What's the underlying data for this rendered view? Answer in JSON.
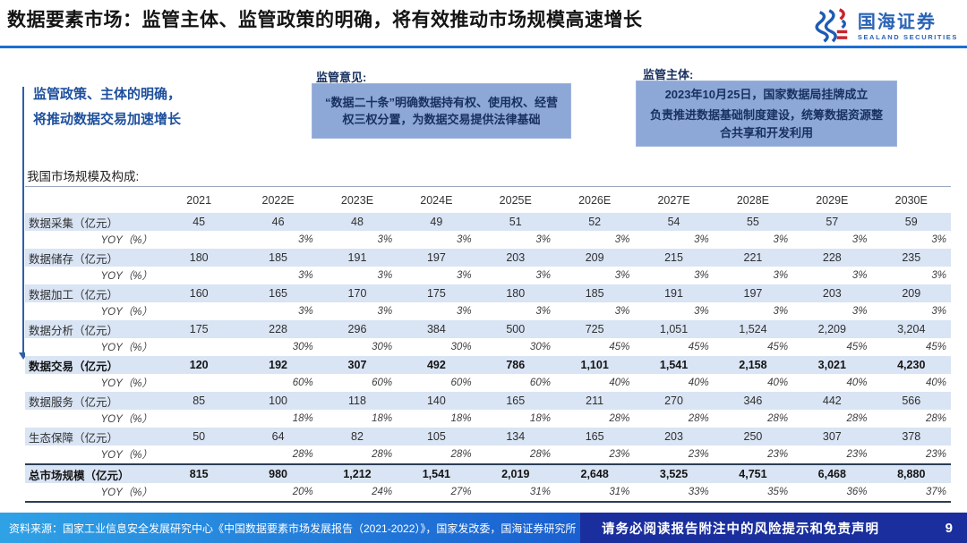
{
  "header": {
    "title": "数据要素市场：监管主体、监管政策的明确，将有效推动市场规模高速增长",
    "logo_cn": "国海证券",
    "logo_en": "SEALAND SECURITIES"
  },
  "intro": {
    "note_line1": "监管政策、主体的明确，",
    "note_line2": "将推动数据交易加速增长"
  },
  "opinion": {
    "label": "监管意见:",
    "text": "“数据二十条”明确数据持有权、使用权、经营权三权分置，为数据交易提供法律基础"
  },
  "authority": {
    "label": "监管主体:",
    "line1": "2023年10月25日，国家数据局挂牌成立",
    "line2": "负责推进数据基础制度建设，统筹数据资源整合共享和开发利用"
  },
  "table": {
    "caption": "我国市场规模及构成:",
    "year_columns": [
      "2021",
      "2022E",
      "2023E",
      "2024E",
      "2025E",
      "2026E",
      "2027E",
      "2028E",
      "2029E",
      "2030E"
    ],
    "rows": [
      {
        "label": "数据采集（亿元）",
        "kind": "value",
        "values": [
          "45",
          "46",
          "48",
          "49",
          "51",
          "52",
          "54",
          "55",
          "57",
          "59"
        ]
      },
      {
        "label": "YOY（%）",
        "kind": "yoy",
        "values": [
          "",
          "3%",
          "3%",
          "3%",
          "3%",
          "3%",
          "3%",
          "3%",
          "3%",
          "3%"
        ]
      },
      {
        "label": "数据储存（亿元）",
        "kind": "value",
        "values": [
          "180",
          "185",
          "191",
          "197",
          "203",
          "209",
          "215",
          "221",
          "228",
          "235"
        ]
      },
      {
        "label": "YOY（%）",
        "kind": "yoy",
        "values": [
          "",
          "3%",
          "3%",
          "3%",
          "3%",
          "3%",
          "3%",
          "3%",
          "3%",
          "3%"
        ]
      },
      {
        "label": "数据加工（亿元）",
        "kind": "value",
        "values": [
          "160",
          "165",
          "170",
          "175",
          "180",
          "185",
          "191",
          "197",
          "203",
          "209"
        ]
      },
      {
        "label": "YOY（%）",
        "kind": "yoy",
        "values": [
          "",
          "3%",
          "3%",
          "3%",
          "3%",
          "3%",
          "3%",
          "3%",
          "3%",
          "3%"
        ]
      },
      {
        "label": "数据分析（亿元）",
        "kind": "value",
        "values": [
          "175",
          "228",
          "296",
          "384",
          "500",
          "725",
          "1,051",
          "1,524",
          "2,209",
          "3,204"
        ]
      },
      {
        "label": "YOY（%）",
        "kind": "yoy",
        "values": [
          "",
          "30%",
          "30%",
          "30%",
          "30%",
          "45%",
          "45%",
          "45%",
          "45%",
          "45%"
        ]
      },
      {
        "label": "数据交易（亿元）",
        "kind": "value",
        "bold": true,
        "values": [
          "120",
          "192",
          "307",
          "492",
          "786",
          "1,101",
          "1,541",
          "2,158",
          "3,021",
          "4,230"
        ]
      },
      {
        "label": "YOY（%）",
        "kind": "yoy",
        "values": [
          "",
          "60%",
          "60%",
          "60%",
          "60%",
          "40%",
          "40%",
          "40%",
          "40%",
          "40%"
        ]
      },
      {
        "label": "数据服务（亿元）",
        "kind": "value",
        "values": [
          "85",
          "100",
          "118",
          "140",
          "165",
          "211",
          "270",
          "346",
          "442",
          "566"
        ]
      },
      {
        "label": "YOY（%）",
        "kind": "yoy",
        "values": [
          "",
          "18%",
          "18%",
          "18%",
          "18%",
          "28%",
          "28%",
          "28%",
          "28%",
          "28%"
        ]
      },
      {
        "label": "生态保障（亿元）",
        "kind": "value",
        "values": [
          "50",
          "64",
          "82",
          "105",
          "134",
          "165",
          "203",
          "250",
          "307",
          "378"
        ]
      },
      {
        "label": "YOY（%）",
        "kind": "yoy",
        "values": [
          "",
          "28%",
          "28%",
          "28%",
          "28%",
          "23%",
          "23%",
          "23%",
          "23%",
          "23%"
        ]
      },
      {
        "label": "总市场规模（亿元）",
        "kind": "value",
        "bold": true,
        "top_border": true,
        "values": [
          "815",
          "980",
          "1,212",
          "1,541",
          "2,019",
          "2,648",
          "3,525",
          "4,751",
          "6,468",
          "8,880"
        ]
      },
      {
        "label": "YOY（%）",
        "kind": "yoy",
        "bottom_border": true,
        "values": [
          "",
          "20%",
          "24%",
          "27%",
          "31%",
          "31%",
          "33%",
          "35%",
          "36%",
          "37%"
        ]
      }
    ]
  },
  "footer": {
    "source": "资料来源：国家工业信息安全发展研究中心《中国数据要素市场发展报告（2021-2022）》，国家发改委，国海证券研究所",
    "disclaimer": "请务必阅读报告附注中的风险提示和免责声明",
    "page_number": "9"
  },
  "colors": {
    "accent_blue": "#1c6fd1",
    "note_blue": "#1d4f9d",
    "callout_box_blue": "#8da7d6",
    "table_stripe": "#d9e4f4",
    "footer_gradient_start": "#2fa2e6",
    "footer_gradient_end": "#1a5fd0",
    "footer_navy": "#1a2e9d",
    "logo_blue": "#2a63b5",
    "logo_red": "#c8252d"
  }
}
